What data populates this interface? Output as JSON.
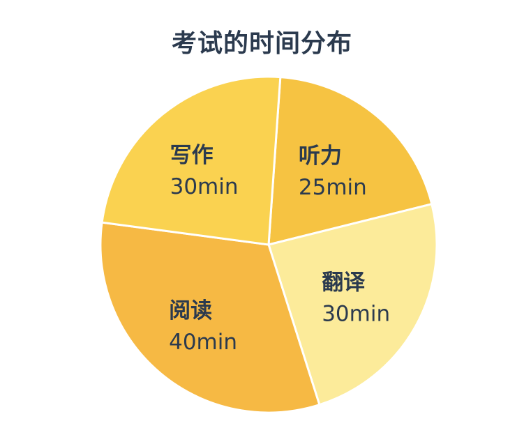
{
  "chart_data": {
    "type": "pie",
    "title": "考试的时间分布",
    "slices": [
      {
        "label": "听力",
        "value_text": "25min",
        "value": 25,
        "color": "#F6C342"
      },
      {
        "label": "翻译",
        "value_text": "30min",
        "value": 30,
        "color": "#FCEB9A"
      },
      {
        "label": "阅读",
        "value_text": "40min",
        "value": 40,
        "color": "#F6B944"
      },
      {
        "label": "写作",
        "value_text": "30min",
        "value": 30,
        "color": "#FAD250"
      }
    ],
    "start_angle_deg": 4,
    "direction": "clockwise",
    "slice_border_color": "#ffffff"
  }
}
